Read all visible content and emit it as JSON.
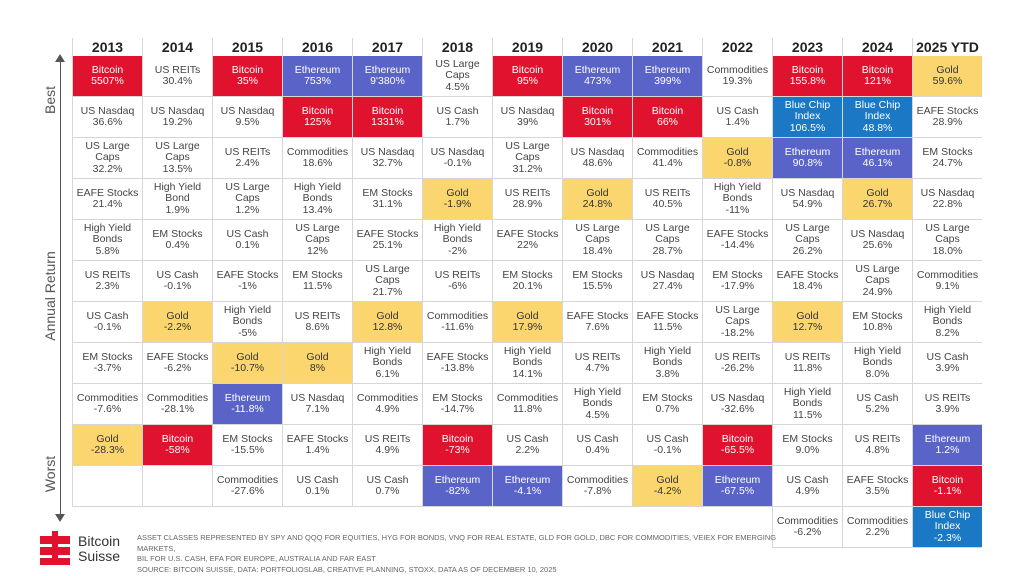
{
  "page": {
    "side_labels": {
      "best": "Best",
      "annual": "Annual Return",
      "worst": "Worst"
    },
    "logo": {
      "line1": "Bitcoin",
      "line2": "Suisse"
    },
    "footnote": {
      "line1": "Asset classes represented by SPY and QQQ for equities, HYG for bonds, VNQ for real estate, GLD for gold, DBC for commodities, VEIEX for emerging markets,",
      "line2": "BIL for U.S. Cash, EFA for Europe, Australia and Far East",
      "line3": "Source: Bitcoin Suisse, Data: PortfoliosLab, Creative Planning, Stoxx, Data as of December 10, 2025"
    },
    "colors": {
      "bitcoin": "#e0122e",
      "ethereum": "#5a64c8",
      "gold": "#fbd66e",
      "blue_chip_index": "#1b78c4",
      "other": "#ffffff"
    }
  },
  "chart_data": {
    "type": "table",
    "title": "",
    "ylabel": "Annual Return",
    "rank_labels": {
      "top": "Best",
      "bottom": "Worst"
    },
    "years": [
      "2013",
      "2014",
      "2015",
      "2016",
      "2017",
      "2018",
      "2019",
      "2020",
      "2021",
      "2022",
      "2023",
      "2024",
      "2025 YTD"
    ],
    "columns": [
      [
        [
          "Bitcoin",
          "5507%"
        ],
        [
          "US Nasdaq",
          "36.6%"
        ],
        [
          "US Large Caps",
          "32.2%"
        ],
        [
          "EAFE Stocks",
          "21.4%"
        ],
        [
          "High Yield Bonds",
          "5.8%"
        ],
        [
          "US REITs",
          "2.3%"
        ],
        [
          "US Cash",
          "-0.1%"
        ],
        [
          "EM Stocks",
          "-3.7%"
        ],
        [
          "Commodities",
          "-7.6%"
        ],
        [
          "Gold",
          "-28.3%"
        ]
      ],
      [
        [
          "US REITs",
          "30.4%"
        ],
        [
          "US Nasdaq",
          "19.2%"
        ],
        [
          "US Large Caps",
          "13.5%"
        ],
        [
          "High Yield Bond",
          "1.9%"
        ],
        [
          "EM Stocks",
          "0.4%"
        ],
        [
          "US Cash",
          "-0.1%"
        ],
        [
          "Gold",
          "-2.2%"
        ],
        [
          "EAFE Stocks",
          "-6.2%"
        ],
        [
          "Commodities",
          "-28.1%"
        ],
        [
          "Bitcoin",
          "-58%"
        ]
      ],
      [
        [
          "Bitcoin",
          "35%"
        ],
        [
          "US Nasdaq",
          "9.5%"
        ],
        [
          "US REITs",
          "2.4%"
        ],
        [
          "US Large Caps",
          "1.2%"
        ],
        [
          "US Cash",
          "0.1%"
        ],
        [
          "EAFE Stocks",
          "-1%"
        ],
        [
          "High Yield Bonds",
          "-5%"
        ],
        [
          "Gold",
          "-10.7%"
        ],
        [
          "Ethereum",
          "-11.8%"
        ],
        [
          "EM Stocks",
          "-15.5%"
        ],
        [
          "Commodities",
          "-27.6%"
        ]
      ],
      [
        [
          "Ethereum",
          "753%"
        ],
        [
          "Bitcoin",
          "125%"
        ],
        [
          "Commodities",
          "18.6%"
        ],
        [
          "High Yield Bonds",
          "13.4%"
        ],
        [
          "US Large Caps",
          "12%"
        ],
        [
          "EM Stocks",
          "11.5%"
        ],
        [
          "US REITs",
          "8.6%"
        ],
        [
          "Gold",
          "8%"
        ],
        [
          "US Nasdaq",
          "7.1%"
        ],
        [
          "EAFE Stocks",
          "1.4%"
        ],
        [
          "US Cash",
          "0.1%"
        ]
      ],
      [
        [
          "Ethereum",
          "9'380%"
        ],
        [
          "Bitcoin",
          "1331%"
        ],
        [
          "US Nasdaq",
          "32.7%"
        ],
        [
          "EM Stocks",
          "31.1%"
        ],
        [
          "EAFE Stocks",
          "25.1%"
        ],
        [
          "US Large Caps",
          "21.7%"
        ],
        [
          "Gold",
          "12.8%"
        ],
        [
          "High Yield Bonds",
          "6.1%"
        ],
        [
          "Commodities",
          "4.9%"
        ],
        [
          "US REITs",
          "4.9%"
        ],
        [
          "US Cash",
          "0.7%"
        ]
      ],
      [
        [
          "US Large Caps",
          "4.5%"
        ],
        [
          "US Cash",
          "1.7%"
        ],
        [
          "US Nasdaq",
          "-0.1%"
        ],
        [
          "Gold",
          "-1.9%"
        ],
        [
          "High Yield Bonds",
          "-2%"
        ],
        [
          "US REITs",
          "-6%"
        ],
        [
          "Commodities",
          "-11.6%"
        ],
        [
          "EAFE Stocks",
          "-13.8%"
        ],
        [
          "EM Stocks",
          "-14.7%"
        ],
        [
          "Bitcoin",
          "-73%"
        ],
        [
          "Ethereum",
          "-82%"
        ]
      ],
      [
        [
          "Bitcoin",
          "95%"
        ],
        [
          "US Nasdaq",
          "39%"
        ],
        [
          "US Large Caps",
          "31.2%"
        ],
        [
          "US REITs",
          "28.9%"
        ],
        [
          "EAFE Stocks",
          "22%"
        ],
        [
          "EM Stocks",
          "20.1%"
        ],
        [
          "Gold",
          "17.9%"
        ],
        [
          "High Yield Bonds",
          "14.1%"
        ],
        [
          "Commodities",
          "11.8%"
        ],
        [
          "US Cash",
          "2.2%"
        ],
        [
          "Ethereum",
          "-4.1%"
        ]
      ],
      [
        [
          "Ethereum",
          "473%"
        ],
        [
          "Bitcoin",
          "301%"
        ],
        [
          "US Nasdaq",
          "48.6%"
        ],
        [
          "Gold",
          "24.8%"
        ],
        [
          "US Large Caps",
          "18.4%"
        ],
        [
          "EM Stocks",
          "15.5%"
        ],
        [
          "EAFE Stocks",
          "7.6%"
        ],
        [
          "US REITs",
          "4.7%"
        ],
        [
          "High Yield Bonds",
          "4.5%"
        ],
        [
          "US Cash",
          "0.4%"
        ],
        [
          "Commodities",
          "-7.8%"
        ]
      ],
      [
        [
          "Ethereum",
          "399%"
        ],
        [
          "Bitcoin",
          "66%"
        ],
        [
          "Commodities",
          "41.4%"
        ],
        [
          "US REITs",
          "40.5%"
        ],
        [
          "US Large Caps",
          "28.7%"
        ],
        [
          "US Nasdaq",
          "27.4%"
        ],
        [
          "EAFE Stocks",
          "11.5%"
        ],
        [
          "High Yield Bonds",
          "3.8%"
        ],
        [
          "EM Stocks",
          "0.7%"
        ],
        [
          "US Cash",
          "-0.1%"
        ],
        [
          "Gold",
          "-4.2%"
        ]
      ],
      [
        [
          "Commodities",
          "19.3%"
        ],
        [
          "US Cash",
          "1.4%"
        ],
        [
          "Gold",
          "-0.8%"
        ],
        [
          "High Yield Bonds",
          "-11%"
        ],
        [
          "EAFE Stocks",
          "-14.4%"
        ],
        [
          "EM Stocks",
          "-17.9%"
        ],
        [
          "US Large Caps",
          "-18.2%"
        ],
        [
          "US REITs",
          "-26.2%"
        ],
        [
          "US Nasdaq",
          "-32.6%"
        ],
        [
          "Bitcoin",
          "-65.5%"
        ],
        [
          "Ethereum",
          "-67.5%"
        ]
      ],
      [
        [
          "Bitcoin",
          "155.8%"
        ],
        [
          "Blue Chip Index",
          "106.5%"
        ],
        [
          "Ethereum",
          "90.8%"
        ],
        [
          "US Nasdaq",
          "54.9%"
        ],
        [
          "US Large Caps",
          "26.2%"
        ],
        [
          "EAFE Stocks",
          "18.4%"
        ],
        [
          "Gold",
          "12.7%"
        ],
        [
          "US REITs",
          "11.8%"
        ],
        [
          "High Yield Bonds",
          "11.5%"
        ],
        [
          "EM Stocks",
          "9.0%"
        ],
        [
          "US Cash",
          "4.9%"
        ],
        [
          "Commodities",
          "-6.2%"
        ]
      ],
      [
        [
          "Bitcoin",
          "121%"
        ],
        [
          "Blue Chip Index",
          "48.8%"
        ],
        [
          "Ethereum",
          "46.1%"
        ],
        [
          "Gold",
          "26.7%"
        ],
        [
          "US Nasdaq",
          "25.6%"
        ],
        [
          "US Large Caps",
          "24.9%"
        ],
        [
          "EM Stocks",
          "10.8%"
        ],
        [
          "High Yield Bonds",
          "8.0%"
        ],
        [
          "US Cash",
          "5.2%"
        ],
        [
          "US REITs",
          "4.8%"
        ],
        [
          "EAFE Stocks",
          "3.5%"
        ],
        [
          "Commodities",
          "2.2%"
        ]
      ],
      [
        [
          "Gold",
          "59.6%"
        ],
        [
          "EAFE Stocks",
          "28.9%"
        ],
        [
          "EM Stocks",
          "24.7%"
        ],
        [
          "US Nasdaq",
          "22.8%"
        ],
        [
          "US Large Caps",
          "18.0%"
        ],
        [
          "Commodities",
          "9.1%"
        ],
        [
          "High Yield Bonds",
          "8.2%"
        ],
        [
          "US Cash",
          "3.9%"
        ],
        [
          "US REITs",
          "3.9%"
        ],
        [
          "Ethereum",
          "1.2%"
        ],
        [
          "Bitcoin",
          "-1.1%"
        ],
        [
          "Blue Chip Index",
          "-2.3%"
        ]
      ]
    ]
  }
}
